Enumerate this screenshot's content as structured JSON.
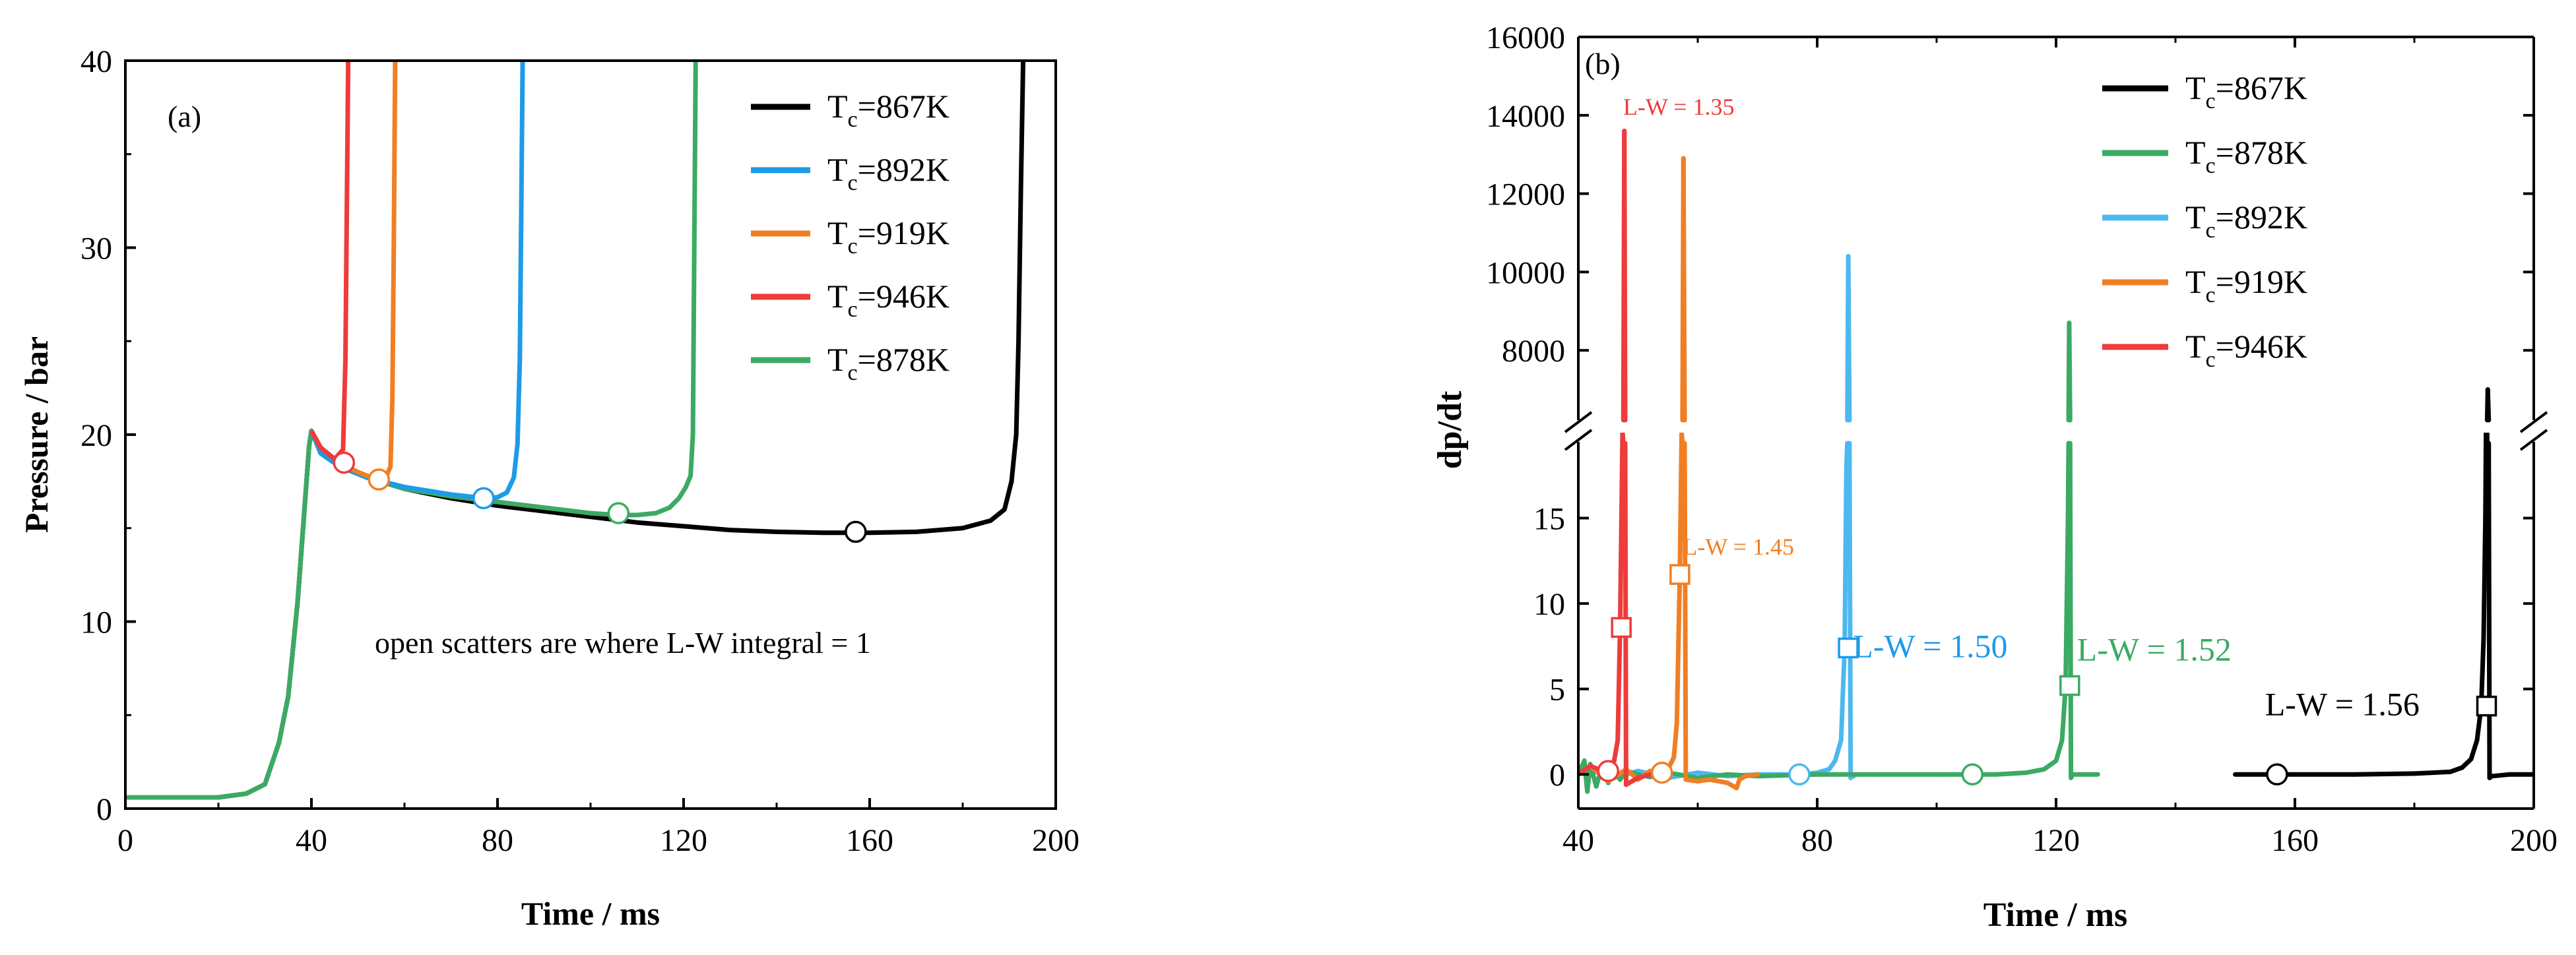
{
  "chart_data": [
    {
      "type": "line",
      "panel_label": "(a)",
      "xlabel": "Time / ms",
      "ylabel": "Pressure / bar",
      "xlim": [
        0,
        200
      ],
      "ylim": [
        0,
        40
      ],
      "xticks": [
        "0",
        "40",
        "80",
        "120",
        "160",
        "200"
      ],
      "yticks": [
        "0",
        "10",
        "20",
        "30",
        "40"
      ],
      "annotation": "open scatters are where L-W integral = 1",
      "legend": [
        {
          "name": "T",
          "sub": "c",
          "value": "=867K",
          "color": "#000000"
        },
        {
          "name": "T",
          "sub": "c",
          "value": "=892K",
          "color": "#1E9BE8"
        },
        {
          "name": "T",
          "sub": "c",
          "value": "=919K",
          "color": "#F07F24"
        },
        {
          "name": "T",
          "sub": "c",
          "value": "=946K",
          "color": "#EE3B3B"
        },
        {
          "name": "T",
          "sub": "c",
          "value": "=878K",
          "color": "#3BAA63"
        }
      ],
      "series": [
        {
          "name": "Tc=867K",
          "color": "#000000",
          "x": [
            0,
            20,
            26,
            30,
            33,
            35,
            37,
            38.5,
            39.5,
            40,
            42,
            46,
            52,
            60,
            70,
            80,
            90,
            100,
            110,
            120,
            130,
            140,
            150,
            160,
            170,
            180,
            186,
            189,
            190.5,
            191.5,
            192,
            192.5,
            193
          ],
          "y": [
            0.6,
            0.6,
            0.8,
            1.3,
            3.5,
            6,
            11,
            16,
            19.4,
            20.2,
            19,
            18.3,
            17.7,
            17.1,
            16.6,
            16.2,
            15.9,
            15.6,
            15.3,
            15.1,
            14.9,
            14.8,
            14.75,
            14.75,
            14.8,
            15,
            15.4,
            16,
            17.5,
            20,
            25,
            33,
            40
          ]
        },
        {
          "name": "Tc=878K",
          "color": "#3BAA63",
          "x": [
            0,
            20,
            26,
            30,
            33,
            35,
            37,
            38.5,
            39.5,
            40,
            42,
            46,
            52,
            60,
            70,
            80,
            90,
            100,
            106,
            110,
            114,
            117,
            119,
            120.5,
            121.5,
            122,
            122.3,
            122.6
          ],
          "y": [
            0.6,
            0.6,
            0.8,
            1.3,
            3.5,
            6,
            11,
            16,
            19.4,
            20.2,
            19,
            18.3,
            17.7,
            17.1,
            16.7,
            16.4,
            16.1,
            15.8,
            15.7,
            15.7,
            15.8,
            16.1,
            16.6,
            17.2,
            17.8,
            20,
            30,
            40
          ]
        },
        {
          "name": "Tc=892K",
          "color": "#1E9BE8",
          "x": [
            40,
            42,
            46,
            52,
            60,
            70,
            77,
            80,
            82,
            83.5,
            84.3,
            84.8,
            85.1,
            85.4
          ],
          "y": [
            20.2,
            19,
            18.3,
            17.7,
            17.2,
            16.8,
            16.6,
            16.65,
            16.9,
            17.7,
            19.5,
            24,
            32,
            40
          ]
        },
        {
          "name": "Tc=919K",
          "color": "#F07F24",
          "x": [
            40,
            42,
            46,
            50,
            54,
            56,
            57,
            57.4,
            57.7,
            58
          ],
          "y": [
            20.2,
            19.3,
            18.5,
            18,
            17.6,
            17.7,
            18.3,
            22,
            30,
            40
          ]
        },
        {
          "name": "Tc=946K",
          "color": "#EE3B3B",
          "x": [
            40,
            42,
            45,
            46.8,
            47.3,
            47.6,
            47.9
          ],
          "y": [
            20.2,
            19.3,
            18.7,
            19.2,
            24,
            32,
            40
          ]
        }
      ],
      "markers": [
        {
          "x": 47,
          "y": 18.5,
          "color": "#EE3B3B"
        },
        {
          "x": 54.5,
          "y": 17.6,
          "color": "#F07F24"
        },
        {
          "x": 77,
          "y": 16.6,
          "color": "#1E9BE8"
        },
        {
          "x": 106,
          "y": 15.8,
          "color": "#3BAA63"
        },
        {
          "x": 157,
          "y": 14.8,
          "color": "#000000"
        }
      ]
    },
    {
      "type": "line",
      "panel_label": "(b)",
      "xlabel": "Time / ms",
      "ylabel": "dp/dt",
      "xlim": [
        40,
        200
      ],
      "ylim_lower": [
        -2,
        20
      ],
      "ylim_upper": [
        6000,
        16000
      ],
      "xticks": [
        "40",
        "80",
        "120",
        "160",
        "200"
      ],
      "yticks_lower": [
        "0",
        "5",
        "10",
        "15"
      ],
      "yticks_upper": [
        "8000",
        "10000",
        "12000",
        "14000",
        "16000"
      ],
      "legend": [
        {
          "name": "T",
          "sub": "c",
          "value": "=867K",
          "color": "#000000"
        },
        {
          "name": "T",
          "sub": "c",
          "value": "=878K",
          "color": "#3BAA63"
        },
        {
          "name": "T",
          "sub": "c",
          "value": "=892K",
          "color": "#4DB8F0"
        },
        {
          "name": "T",
          "sub": "c",
          "value": "=919K",
          "color": "#F07F24"
        },
        {
          "name": "T",
          "sub": "c",
          "value": "=946K",
          "color": "#EE3B3B"
        }
      ],
      "labels": [
        {
          "text": "L-W = 1.35",
          "color": "#EE3B3B",
          "x": 47.5,
          "y": 14250,
          "size": "small"
        },
        {
          "text": "L-W = 1.45",
          "color": "#F07F24",
          "x": 57.5,
          "y": 13.4,
          "size": "small"
        },
        {
          "text": "L-W = 1.50",
          "color": "#1E9BE8",
          "x": 86,
          "y": 7.4,
          "size": "large"
        },
        {
          "text": "L-W = 1.52",
          "color": "#3BAA63",
          "x": 123.5,
          "y": 7.2,
          "size": "large"
        },
        {
          "text": "L-W = 1.56",
          "color": "#000000",
          "x": 155,
          "y": 4.0,
          "size": "large"
        }
      ],
      "series": [
        {
          "name": "Tc=867K",
          "color": "#000000",
          "x": [
            150,
            160,
            170,
            180,
            186,
            188,
            189.5,
            190.5,
            191.2,
            191.6,
            191.9,
            192.1,
            192.3,
            192.6,
            193,
            196,
            200
          ],
          "y": [
            0,
            0,
            0,
            0.05,
            0.15,
            0.4,
            0.9,
            2,
            4,
            8,
            15,
            25,
            7000,
            -0.2,
            -0.1,
            0,
            0
          ]
        },
        {
          "name": "Tc=878K",
          "color": "#3BAA63",
          "x": [
            40,
            41,
            41.5,
            42,
            43,
            44,
            45,
            46,
            47,
            48,
            50,
            52,
            55,
            60,
            65,
            70,
            80,
            90,
            100,
            110,
            115,
            118,
            120,
            121,
            121.6,
            122,
            122.2,
            122.5,
            122.8,
            124,
            127
          ],
          "y": [
            0,
            0.8,
            -1,
            0.6,
            -0.7,
            0.5,
            -0.5,
            0.3,
            -0.3,
            0.2,
            0,
            -0.15,
            0.1,
            -0.2,
            0,
            -0.1,
            0,
            0,
            0,
            0,
            0.1,
            0.3,
            0.8,
            2,
            5.2,
            15,
            8700,
            -0.2,
            0,
            0,
            0
          ]
        },
        {
          "name": "Tc=892K",
          "color": "#4DB8F0",
          "x": [
            40,
            42,
            45,
            50,
            55,
            60,
            65,
            70,
            77,
            80,
            82,
            83,
            84,
            84.6,
            84.9,
            85.2,
            85.6,
            86.5
          ],
          "y": [
            0,
            0.4,
            -0.3,
            0.2,
            -0.2,
            0.1,
            -0.1,
            0,
            0,
            0.1,
            0.3,
            0.8,
            2,
            7.4,
            18,
            10400,
            -0.2,
            0
          ]
        },
        {
          "name": "Tc=919K",
          "color": "#F07F24",
          "x": [
            40,
            42,
            45,
            48,
            50,
            52,
            54,
            55,
            56,
            56.5,
            57,
            57.3,
            57.6,
            58,
            60,
            62,
            65,
            66.5,
            67,
            68,
            70
          ],
          "y": [
            0,
            0.5,
            -0.4,
            0.3,
            -0.3,
            0.2,
            0.1,
            0.3,
            1,
            3,
            11.7,
            20,
            12900,
            -0.3,
            -0.4,
            -0.3,
            -0.5,
            -0.8,
            -0.3,
            -0.1,
            0
          ]
        },
        {
          "name": "Tc=946K",
          "color": "#EE3B3B",
          "x": [
            40,
            42,
            44,
            45,
            46,
            46.6,
            47,
            47.4,
            47.7,
            48,
            49,
            50,
            52
          ],
          "y": [
            0,
            0.5,
            0.2,
            0.3,
            0.8,
            2,
            8.6,
            20,
            13600,
            -0.6,
            -0.4,
            -0.2,
            0
          ]
        }
      ],
      "circle_markers": [
        {
          "x": 45,
          "y": 0.2,
          "color": "#EE3B3B"
        },
        {
          "x": 54,
          "y": 0.1,
          "color": "#F07F24"
        },
        {
          "x": 77,
          "y": 0,
          "color": "#4DB8F0"
        },
        {
          "x": 106,
          "y": 0,
          "color": "#3BAA63"
        },
        {
          "x": 157,
          "y": 0,
          "color": "#000000"
        }
      ],
      "square_markers": [
        {
          "x": 47.2,
          "y": 8.6,
          "color": "#EE3B3B"
        },
        {
          "x": 57,
          "y": 11.7,
          "color": "#F07F24"
        },
        {
          "x": 85.2,
          "y": 7.4,
          "color": "#1E9BE8"
        },
        {
          "x": 122.3,
          "y": 5.2,
          "color": "#3BAA63"
        },
        {
          "x": 192.1,
          "y": 4.0,
          "color": "#000000"
        }
      ]
    }
  ]
}
